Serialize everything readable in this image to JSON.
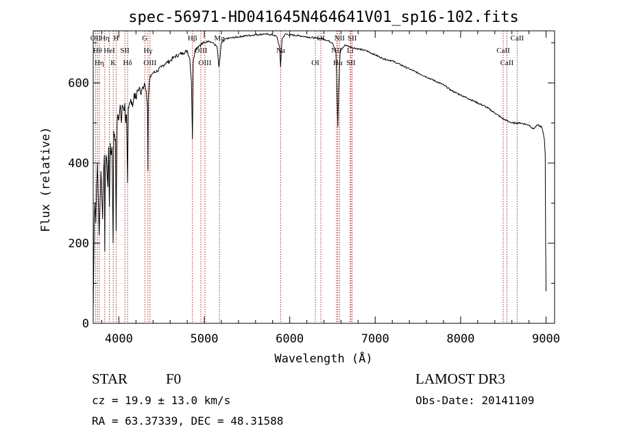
{
  "chart_data": {
    "type": "line",
    "title": "spec-56971-HD041645N464641V01_sp16-102.fits",
    "xlabel": "Wavelength (Å)",
    "ylabel": "Flux (relative)",
    "xlim": [
      3700,
      9100
    ],
    "ylim": [
      0,
      730
    ],
    "xticks": [
      4000,
      5000,
      6000,
      7000,
      8000,
      9000
    ],
    "yticks": [
      0,
      200,
      400,
      600
    ],
    "xtick_labels": [
      "4000",
      "5000",
      "6000",
      "7000",
      "8000",
      "9000"
    ],
    "ytick_labels": [
      "0",
      "200",
      "400",
      "600"
    ],
    "series": [
      {
        "name": "flux",
        "x": [
          3700,
          3705,
          3712,
          3720,
          3730,
          3740,
          3750,
          3760,
          3770,
          3780,
          3790,
          3800,
          3810,
          3820,
          3830,
          3835,
          3840,
          3850,
          3860,
          3870,
          3880,
          3889,
          3900,
          3910,
          3920,
          3933,
          3940,
          3950,
          3960,
          3968,
          3980,
          3990,
          4000,
          4010,
          4020,
          4030,
          4040,
          4060,
          4070,
          4080,
          4090,
          4102,
          4110,
          4120,
          4140,
          4160,
          4180,
          4200,
          4220,
          4240,
          4260,
          4280,
          4300,
          4320,
          4335,
          4340,
          4345,
          4360,
          4380,
          4400,
          4450,
          4500,
          4550,
          4600,
          4650,
          4700,
          4750,
          4800,
          4830,
          4850,
          4861,
          4870,
          4890,
          4920,
          4950,
          5000,
          5050,
          5100,
          5150,
          5170,
          5183,
          5200,
          5250,
          5300,
          5400,
          5500,
          5600,
          5700,
          5800,
          5850,
          5880,
          5893,
          5910,
          5950,
          6000,
          6100,
          6200,
          6300,
          6400,
          6500,
          6540,
          6555,
          6563,
          6572,
          6590,
          6650,
          6700,
          6800,
          6900,
          7000,
          7100,
          7200,
          7300,
          7400,
          7500,
          7600,
          7700,
          7800,
          7900,
          8000,
          8100,
          8200,
          8300,
          8400,
          8500,
          8600,
          8700,
          8800,
          8850,
          8900,
          8950,
          8980,
          8990,
          8995,
          9000
        ],
        "y": [
          30,
          120,
          260,
          300,
          250,
          350,
          400,
          300,
          220,
          300,
          380,
          320,
          260,
          380,
          420,
          180,
          330,
          420,
          400,
          340,
          440,
          290,
          450,
          420,
          440,
          200,
          480,
          470,
          460,
          230,
          500,
          520,
          510,
          530,
          540,
          500,
          545,
          530,
          550,
          500,
          520,
          350,
          540,
          545,
          560,
          540,
          575,
          560,
          580,
          590,
          570,
          590,
          600,
          580,
          540,
          380,
          560,
          610,
          620,
          625,
          630,
          640,
          650,
          655,
          665,
          670,
          675,
          680,
          660,
          600,
          460,
          650,
          680,
          690,
          695,
          700,
          705,
          700,
          690,
          640,
          660,
          700,
          710,
          712,
          715,
          718,
          720,
          722,
          720,
          715,
          690,
          640,
          710,
          722,
          720,
          718,
          715,
          712,
          710,
          700,
          680,
          560,
          490,
          580,
          680,
          695,
          690,
          685,
          680,
          670,
          660,
          655,
          645,
          635,
          625,
          615,
          605,
          595,
          580,
          570,
          560,
          550,
          540,
          525,
          510,
          500,
          500,
          495,
          485,
          495,
          490,
          460,
          420,
          200,
          80
        ]
      }
    ],
    "lines": [
      {
        "x": 3727,
        "label": "OII"
      },
      {
        "x": 3750,
        "label": "Hθ"
      },
      {
        "x": 3771,
        "label": "Hη"
      },
      {
        "x": 3835,
        "label": "Hη"
      },
      {
        "x": 3889,
        "label": "HeI"
      },
      {
        "x": 3934,
        "label": "K"
      },
      {
        "x": 3968,
        "label": "H"
      },
      {
        "x": 4070,
        "label": "SII"
      },
      {
        "x": 4102,
        "label": "Hδ"
      },
      {
        "x": 4304,
        "label": "G"
      },
      {
        "x": 4341,
        "label": "Hγ"
      },
      {
        "x": 4364,
        "label": "OIII"
      },
      {
        "x": 4861,
        "label": "Hβ"
      },
      {
        "x": 4959,
        "label": "OIII"
      },
      {
        "x": 5007,
        "label": "OIII"
      },
      {
        "x": 5177,
        "label": "Mg"
      },
      {
        "x": 5894,
        "label": "Na"
      },
      {
        "x": 6300,
        "label": "OI"
      },
      {
        "x": 6364,
        "label": "OI"
      },
      {
        "x": 6548,
        "label": "NII"
      },
      {
        "x": 6563,
        "label": "Hα"
      },
      {
        "x": 6583,
        "label": "NII"
      },
      {
        "x": 6708,
        "label": "Li"
      },
      {
        "x": 6716,
        "label": "SII"
      },
      {
        "x": 6731,
        "label": "SII"
      },
      {
        "x": 8498,
        "label": "CaII"
      },
      {
        "x": 8542,
        "label": "CaII"
      },
      {
        "x": 8662,
        "label": "CaII"
      }
    ],
    "grid": false,
    "legend": "none"
  },
  "info": {
    "object_class": "STAR",
    "subclass": "F0",
    "survey": "LAMOST DR3",
    "redshift_text": "cz =  19.9 ± 13.0 km/s",
    "obs_date": "Obs-Date: 20141109",
    "coords": "RA =  63.37339, DEC =  48.31588"
  },
  "colors": {
    "line": "#000000",
    "marker": "#b22222",
    "text": "#000000"
  }
}
